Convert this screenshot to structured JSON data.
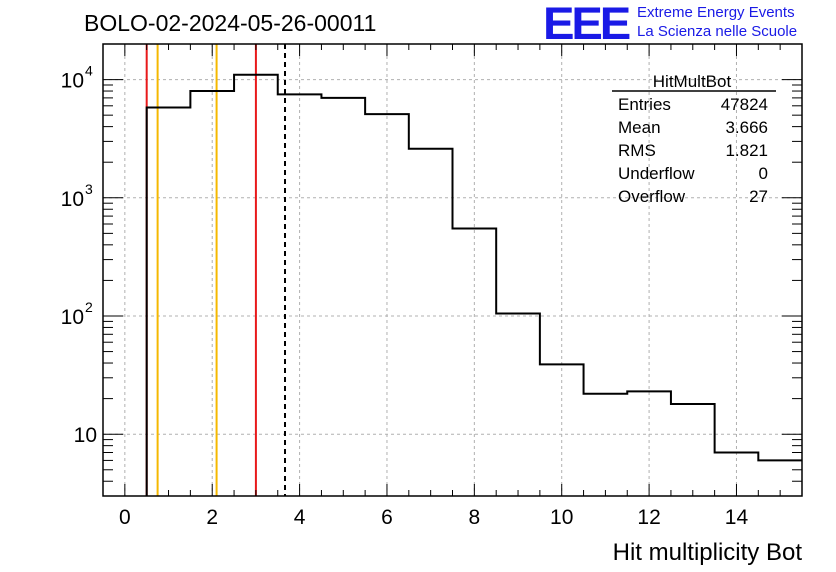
{
  "title": "BOLO-02-2024-05-26-00011",
  "logo": {
    "mark": "EEE",
    "line1": "Extreme Energy Events",
    "line2": "La Scienza nelle Scuole"
  },
  "colors": {
    "histogram": "#000000",
    "red_line": "#e8191a",
    "orange_line": "#f5b800",
    "grid": "#b0b0b0",
    "logo": "#1a1ae6"
  },
  "chart_data": {
    "type": "histogram",
    "title": "BOLO-02-2024-05-26-00011",
    "xlabel": "Hit multiplicity Bot",
    "ylabel": "",
    "xlim": [
      -0.5,
      15.5
    ],
    "ylim": [
      3,
      20000
    ],
    "yscale": "log",
    "grid": true,
    "bin_edges": [
      0.5,
      1.5,
      2.5,
      3.5,
      4.5,
      5.5,
      6.5,
      7.5,
      8.5,
      9.5,
      10.5,
      11.5,
      12.5,
      13.5,
      14.5,
      15.5
    ],
    "counts": [
      5800,
      8000,
      11000,
      7500,
      7000,
      5100,
      2600,
      550,
      105,
      39,
      22,
      23,
      18,
      7,
      6
    ],
    "x_ticks": [
      "0",
      "2",
      "4",
      "6",
      "8",
      "10",
      "12",
      "14"
    ],
    "x_tick_values": [
      0,
      2,
      4,
      6,
      8,
      10,
      12,
      14
    ],
    "y_ticks": [
      {
        "value": 10,
        "base": "10",
        "exp": ""
      },
      {
        "value": 100,
        "base": "10",
        "exp": "2"
      },
      {
        "value": 1000,
        "base": "10",
        "exp": "3"
      },
      {
        "value": 10000,
        "base": "10",
        "exp": "4"
      }
    ],
    "vertical_lines": [
      {
        "x": 0.5,
        "color": "red",
        "style": "solid"
      },
      {
        "x": 3.0,
        "color": "red",
        "style": "solid"
      },
      {
        "x": 0.75,
        "color": "orange",
        "style": "solid"
      },
      {
        "x": 2.1,
        "color": "orange",
        "style": "solid"
      },
      {
        "x": 3.666,
        "color": "black",
        "style": "dashed"
      }
    ],
    "stats_box": {
      "name": "HitMultBot",
      "rows": [
        {
          "label": "Entries",
          "value": "47824"
        },
        {
          "label": "Mean",
          "value": "3.666"
        },
        {
          "label": "RMS",
          "value": "1.821"
        },
        {
          "label": "Underflow",
          "value": "0"
        },
        {
          "label": "Overflow",
          "value": "27"
        }
      ]
    }
  }
}
